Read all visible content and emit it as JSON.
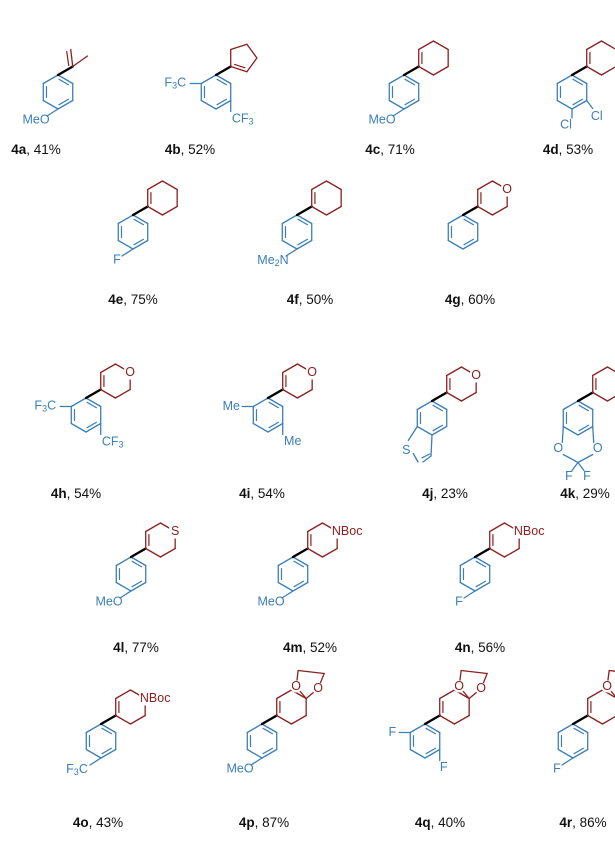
{
  "colors": {
    "aryl": "#3b7fb8",
    "alkene_ring": "#8b2020",
    "bond": "#000000",
    "text": "#111111"
  },
  "compounds": [
    {
      "id": "4a",
      "yield": "41%",
      "substituents": [
        "MeO"
      ],
      "alkene": "isopropenyl"
    },
    {
      "id": "4b",
      "yield": "52%",
      "substituents": [
        "F3C",
        "CF3"
      ],
      "alkene": "cyclopentenyl"
    },
    {
      "id": "4c",
      "yield": "71%",
      "substituents": [
        "MeO"
      ],
      "alkene": "cyclohexenyl"
    },
    {
      "id": "4d",
      "yield": "53%",
      "substituents": [
        "Cl",
        "Cl"
      ],
      "alkene": "cyclohexenyl"
    },
    {
      "id": "4e",
      "yield": "75%",
      "substituents": [
        "F"
      ],
      "alkene": "cyclohexenyl"
    },
    {
      "id": "4f",
      "yield": "50%",
      "substituents": [
        "Me2N"
      ],
      "alkene": "cyclohexenyl"
    },
    {
      "id": "4g",
      "yield": "60%",
      "substituents": [],
      "alkene": "dihydropyranyl",
      "ring_atom": "O"
    },
    {
      "id": "4h",
      "yield": "54%",
      "substituents": [
        "F3C",
        "CF3"
      ],
      "alkene": "dihydropyranyl",
      "ring_atom": "O"
    },
    {
      "id": "4i",
      "yield": "54%",
      "substituents": [
        "Me",
        "Me"
      ],
      "alkene": "dihydropyranyl",
      "ring_atom": "O"
    },
    {
      "id": "4j",
      "yield": "23%",
      "substituents": [
        "S"
      ],
      "alkene": "dihydropyranyl",
      "ring_atom": "O",
      "aryl": "benzothiophenyl"
    },
    {
      "id": "4k",
      "yield": "29%",
      "substituents": [
        "O",
        "O",
        "F",
        "F"
      ],
      "alkene": "dihydropyranyl",
      "ring_atom": "O",
      "aryl": "difluorobenzodioxolyl"
    },
    {
      "id": "4l",
      "yield": "77%",
      "substituents": [
        "MeO"
      ],
      "alkene": "dihydrothiopyranyl",
      "ring_atom": "S"
    },
    {
      "id": "4m",
      "yield": "52%",
      "substituents": [
        "MeO"
      ],
      "alkene": "tetrahydropyridinyl",
      "ring_atom": "NBoc"
    },
    {
      "id": "4n",
      "yield": "56%",
      "substituents": [
        "F"
      ],
      "alkene": "tetrahydropyridinyl",
      "ring_atom": "NBoc"
    },
    {
      "id": "4o",
      "yield": "43%",
      "substituents": [
        "F3C"
      ],
      "alkene": "tetrahydropyridinyl",
      "ring_atom": "NBoc"
    },
    {
      "id": "4p",
      "yield": "87%",
      "substituents": [
        "MeO"
      ],
      "alkene": "spiroketal",
      "ring_atom": "O"
    },
    {
      "id": "4q",
      "yield": "40%",
      "substituents": [
        "F",
        "F"
      ],
      "alkene": "spiroketal",
      "ring_atom": "O"
    },
    {
      "id": "4r",
      "yield": "86%",
      "substituents": [
        "F"
      ],
      "alkene": "spiroketal",
      "ring_atom": "O"
    }
  ]
}
